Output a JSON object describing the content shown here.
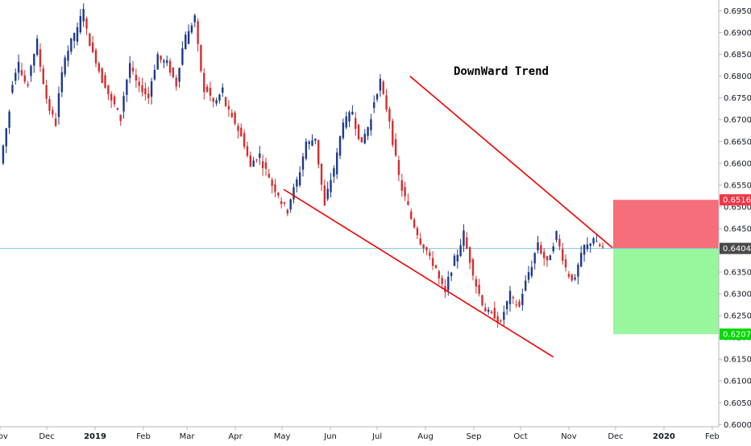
{
  "chart_data": {
    "type": "candlestick",
    "title": "",
    "annotation": "DownWard Trend",
    "ylim": [
      0.5995,
      0.6975
    ],
    "y_ticks": [
      "0.69500",
      "0.69000",
      "0.68500",
      "0.68000",
      "0.67500",
      "0.67000",
      "0.66500",
      "0.66000",
      "0.65500",
      "0.65000",
      "0.64500",
      "0.64000",
      "0.63500",
      "0.63000",
      "0.62500",
      "0.62000",
      "0.61500",
      "0.61000",
      "0.60500",
      "0.60000"
    ],
    "x_ticks": [
      "Nov",
      "Dec",
      "2019",
      "Feb",
      "Mar",
      "Apr",
      "May",
      "Jun",
      "Jul",
      "Aug",
      "Sep",
      "Oct",
      "Nov",
      "Dec",
      "2020",
      "Feb"
    ],
    "price_badges": [
      {
        "value": "0.65160",
        "color": "#f23645"
      },
      {
        "value": "0.64044",
        "color": "#4a4a4a"
      },
      {
        "value": "0.62075",
        "color": "#00d900"
      }
    ],
    "current_price": 0.64044,
    "stop_loss": 0.6516,
    "take_profit": 0.62075,
    "trendlines": [
      {
        "name": "upper",
        "start": {
          "date": "2019-07-22",
          "price": 0.68
        },
        "end": {
          "date": "2019-11-29",
          "price": 0.6406
        }
      },
      {
        "name": "lower",
        "start": {
          "date": "2019-05-02",
          "price": 0.654
        },
        "end": {
          "date": "2019-10-22",
          "price": 0.6155
        }
      }
    ],
    "ohlc_waypoints": [
      [
        0.66,
        0.672
      ],
      [
        0.676,
        0.684
      ],
      [
        0.682,
        0.677
      ],
      [
        0.68,
        0.688
      ],
      [
        0.686,
        0.675
      ],
      [
        0.674,
        0.669
      ],
      [
        0.671,
        0.685
      ],
      [
        0.684,
        0.69
      ],
      [
        0.688,
        0.696
      ],
      [
        0.693,
        0.685
      ],
      [
        0.686,
        0.679
      ],
      [
        0.68,
        0.674
      ],
      [
        0.675,
        0.67
      ],
      [
        0.672,
        0.683
      ],
      [
        0.682,
        0.677
      ],
      [
        0.678,
        0.675
      ],
      [
        0.676,
        0.685
      ],
      [
        0.684,
        0.683
      ],
      [
        0.683,
        0.678
      ],
      [
        0.679,
        0.69
      ],
      [
        0.688,
        0.694
      ],
      [
        0.692,
        0.676
      ],
      [
        0.678,
        0.674
      ],
      [
        0.673,
        0.677
      ],
      [
        0.675,
        0.67
      ],
      [
        0.671,
        0.666
      ],
      [
        0.667,
        0.659
      ],
      [
        0.66,
        0.662
      ],
      [
        0.661,
        0.657
      ],
      [
        0.656,
        0.653
      ],
      [
        0.652,
        0.649
      ],
      [
        0.65,
        0.656
      ],
      [
        0.655,
        0.665
      ],
      [
        0.664,
        0.666
      ],
      [
        0.665,
        0.65
      ],
      [
        0.651,
        0.659
      ],
      [
        0.658,
        0.67
      ],
      [
        0.669,
        0.672
      ],
      [
        0.671,
        0.664
      ],
      [
        0.665,
        0.67
      ],
      [
        0.672,
        0.679
      ],
      [
        0.678,
        0.67
      ],
      [
        0.669,
        0.657
      ],
      [
        0.656,
        0.65
      ],
      [
        0.649,
        0.644
      ],
      [
        0.643,
        0.64
      ],
      [
        0.639,
        0.636
      ],
      [
        0.635,
        0.63
      ],
      [
        0.631,
        0.638
      ],
      [
        0.637,
        0.644
      ],
      [
        0.643,
        0.635
      ],
      [
        0.634,
        0.628
      ],
      [
        0.627,
        0.625
      ],
      [
        0.626,
        0.623
      ],
      [
        0.624,
        0.63
      ],
      [
        0.629,
        0.627
      ],
      [
        0.628,
        0.635
      ],
      [
        0.634,
        0.642
      ],
      [
        0.641,
        0.637
      ],
      [
        0.637,
        0.644
      ],
      [
        0.643,
        0.636
      ],
      [
        0.635,
        0.633
      ],
      [
        0.634,
        0.641
      ],
      [
        0.64,
        0.643
      ],
      [
        0.642,
        0.6404
      ]
    ]
  }
}
